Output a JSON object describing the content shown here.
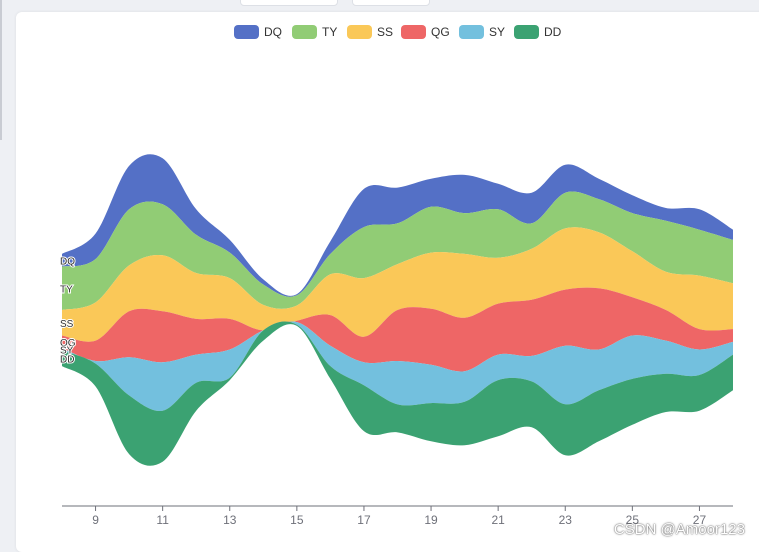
{
  "watermark": "CSDN @Amoor123",
  "chart_data": {
    "type": "area",
    "stacked": true,
    "stack_offset": "silhouette",
    "smooth": true,
    "legend_position": "top-center",
    "grid": false,
    "title": "",
    "xlabel": "",
    "ylabel": "",
    "x": [
      8,
      9,
      10,
      11,
      12,
      13,
      14,
      15,
      16,
      17,
      18,
      19,
      20,
      21,
      22,
      23,
      24,
      25,
      26,
      27,
      28
    ],
    "x_ticks": [
      "9",
      "11",
      "13",
      "15",
      "17",
      "19",
      "21",
      "23",
      "25",
      "27"
    ],
    "colors": [
      "#5470c6",
      "#91cc75",
      "#fac858",
      "#ee6666",
      "#73c0de",
      "#3ba272"
    ],
    "series": [
      {
        "name": "DQ",
        "values": [
          5,
          10,
          17,
          18,
          10,
          5,
          2,
          0.5,
          5,
          15,
          14,
          11,
          15,
          10,
          12,
          11,
          8,
          7,
          5,
          8,
          4
        ]
      },
      {
        "name": "TY",
        "values": [
          17,
          17,
          22,
          20,
          15,
          10,
          8,
          4,
          8,
          20,
          16,
          18,
          16,
          19,
          10,
          14,
          13,
          15,
          20,
          18,
          17
        ]
      },
      {
        "name": "SS",
        "values": [
          10,
          15,
          18,
          22,
          18,
          16,
          10,
          6,
          16,
          23,
          18,
          22,
          25,
          18,
          20,
          24,
          22,
          18,
          15,
          21,
          18
        ]
      },
      {
        "name": "QG",
        "values": [
          5,
          8,
          18,
          20,
          14,
          12,
          0,
          0.5,
          12,
          10,
          20,
          22,
          21,
          20,
          22,
          22,
          24,
          15,
          12,
          8,
          5
        ]
      },
      {
        "name": "SY",
        "values": [
          1,
          1,
          15,
          19,
          11,
          11,
          0,
          1,
          8,
          9,
          17,
          15,
          12,
          10,
          10,
          23,
          16,
          17,
          13,
          10,
          5
        ]
      },
      {
        "name": "DD",
        "values": [
          6,
          9,
          23,
          20,
          11,
          1,
          4,
          0.5,
          5,
          18,
          11,
          15,
          17,
          22,
          18,
          20,
          20,
          18,
          15,
          14,
          14
        ]
      }
    ]
  }
}
